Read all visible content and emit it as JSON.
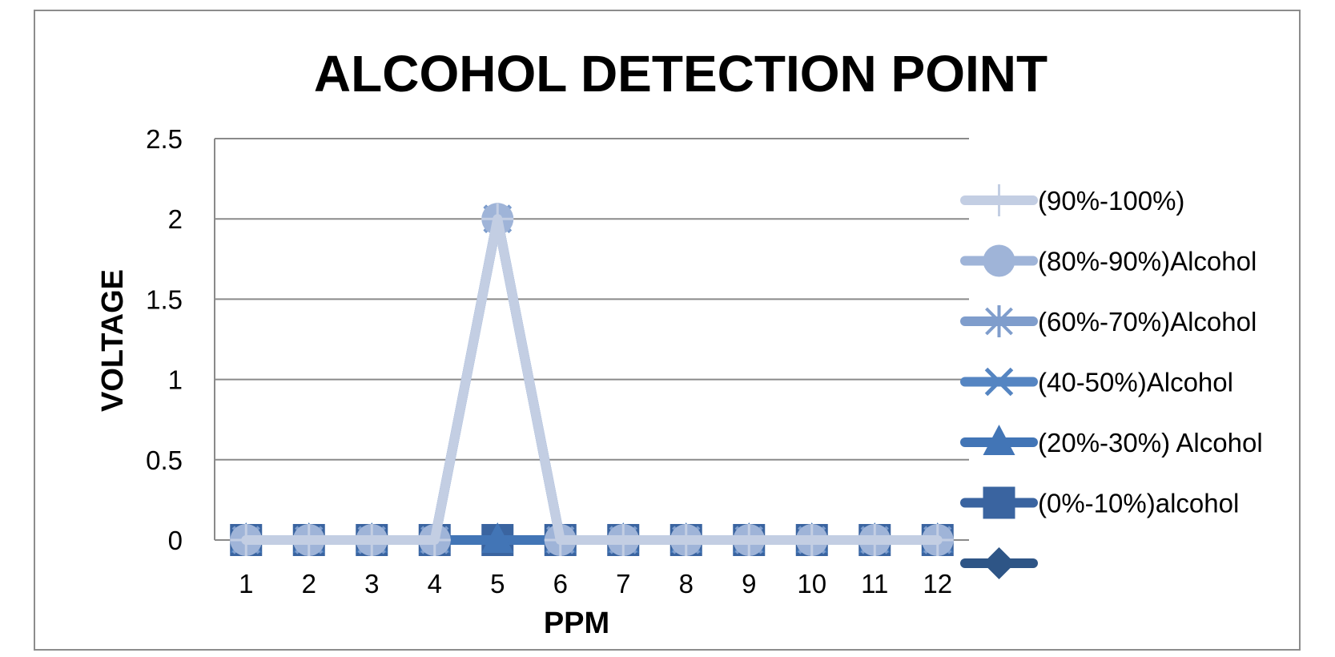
{
  "chart_data": {
    "type": "line",
    "title": "ALCOHOL DETECTION POINT",
    "xlabel": "PPM",
    "ylabel": "VOLTAGE",
    "categories": [
      "1",
      "2",
      "3",
      "4",
      "5",
      "6",
      "7",
      "8",
      "9",
      "10",
      "11",
      "12"
    ],
    "yticks": [
      "0",
      "0.5",
      "1",
      "1.5",
      "2",
      "2.5"
    ],
    "ylim": [
      0,
      2.5
    ],
    "grid": true,
    "legend_position": "right",
    "series": [
      {
        "name": "",
        "color": "#2e5586",
        "marker": "diamond",
        "values": [
          0,
          0,
          0,
          0,
          0,
          0,
          0,
          0,
          0,
          0,
          0,
          0
        ]
      },
      {
        "name": "(0%-10%)alcohol",
        "color": "#3a64a0",
        "marker": "square",
        "values": [
          0,
          0,
          0,
          0,
          0,
          0,
          0,
          0,
          0,
          0,
          0,
          0
        ]
      },
      {
        "name": "(20%-30%) Alcohol",
        "color": "#4275b6",
        "marker": "triangle",
        "values": [
          0,
          0,
          0,
          0,
          0,
          0,
          0,
          0,
          0,
          0,
          0,
          0
        ]
      },
      {
        "name": "(40-50%)Alcohol",
        "color": "#5585c2",
        "marker": "x",
        "values": [
          0,
          0,
          0,
          0,
          2,
          0,
          0,
          0,
          0,
          0,
          0,
          0
        ]
      },
      {
        "name": "(60%-70%)Alcohol",
        "color": "#7f9dcc",
        "marker": "star",
        "values": [
          0,
          0,
          0,
          0,
          2,
          0,
          0,
          0,
          0,
          0,
          0,
          0
        ]
      },
      {
        "name": "(80%-90%)Alcohol",
        "color": "#9fb4d8",
        "marker": "circle",
        "values": [
          0,
          0,
          0,
          0,
          2,
          0,
          0,
          0,
          0,
          0,
          0,
          0
        ]
      },
      {
        "name": "(90%-100%)",
        "color": "#c3cee3",
        "marker": "plus",
        "values": [
          0,
          0,
          0,
          0,
          2,
          0,
          0,
          0,
          0,
          0,
          0,
          0
        ]
      }
    ],
    "legend_order": [
      6,
      5,
      4,
      3,
      2,
      1,
      0
    ]
  }
}
